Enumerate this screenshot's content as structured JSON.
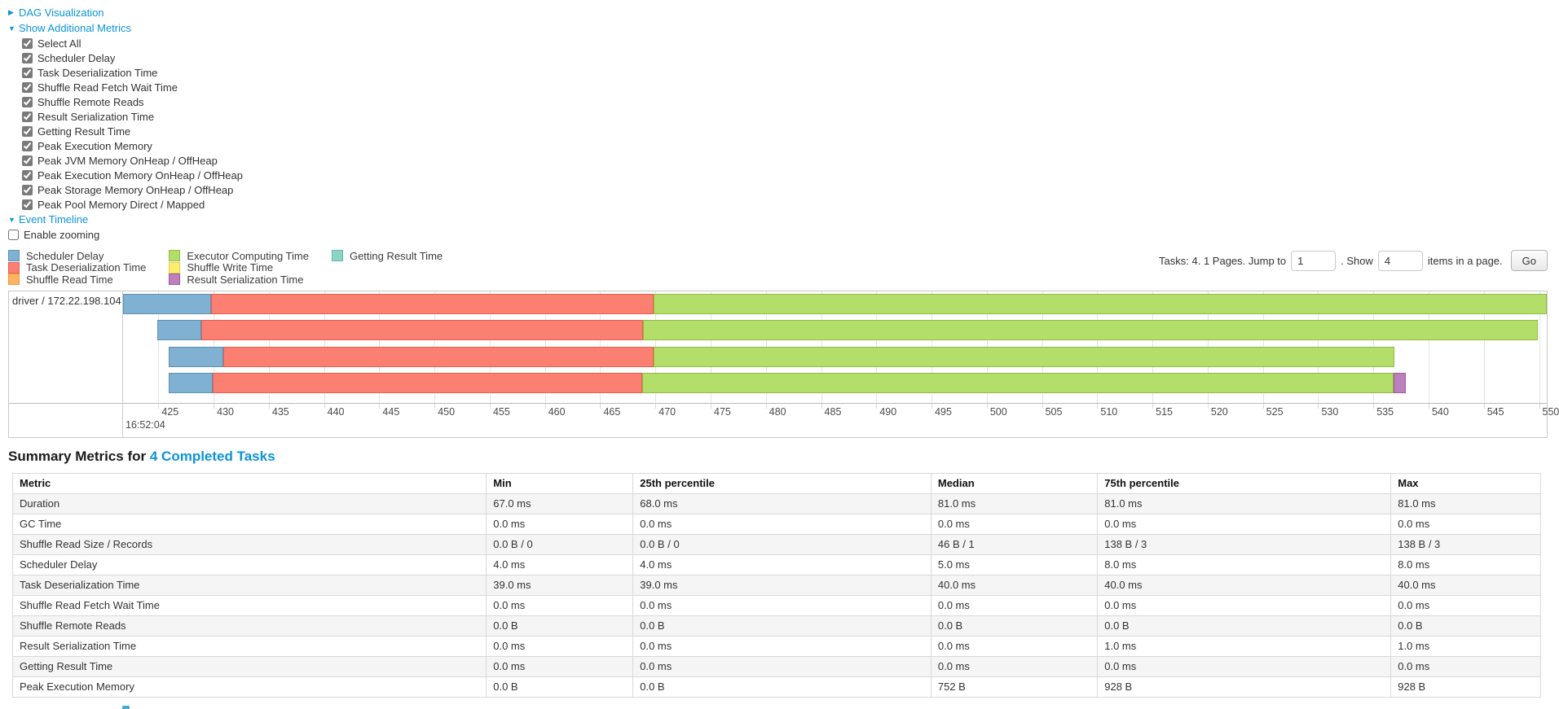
{
  "controls": {
    "dag_link": "DAG Visualization",
    "metrics_link": "Show Additional Metrics",
    "timeline_link": "Event Timeline",
    "enable_zooming": "Enable zooming",
    "metric_checkboxes": [
      "Select All",
      "Scheduler Delay",
      "Task Deserialization Time",
      "Shuffle Read Fetch Wait Time",
      "Shuffle Remote Reads",
      "Result Serialization Time",
      "Getting Result Time",
      "Peak Execution Memory",
      "Peak JVM Memory OnHeap / OffHeap",
      "Peak Execution Memory OnHeap / OffHeap",
      "Peak Storage Memory OnHeap / OffHeap",
      "Peak Pool Memory Direct / Mapped"
    ]
  },
  "pagination": {
    "prefix": "Tasks: 4. 1 Pages. Jump to",
    "jump_value": "1",
    "mid": ". Show",
    "show_value": "4",
    "suffix": "items in a page.",
    "go_label": "Go"
  },
  "chart_data": {
    "type": "timeline",
    "title": "Event Timeline",
    "row_label": "driver / 172.22.198.104",
    "axis": {
      "unit": "milliseconds within second 16:52:04",
      "min": 421.8,
      "max": 550.7,
      "tick_step": 5,
      "ticks": [
        425,
        430,
        435,
        440,
        445,
        450,
        455,
        460,
        465,
        470,
        475,
        480,
        485,
        490,
        495,
        500,
        505,
        510,
        515,
        520,
        525,
        530,
        535,
        540,
        545,
        550
      ],
      "major_label": "16:52:04"
    },
    "legend": [
      {
        "label": "Scheduler Delay",
        "color": "#80B1D3",
        "border": "#5A92B4"
      },
      {
        "label": "Task Deserialization Time",
        "color": "#FB8072",
        "border": "#E85F50"
      },
      {
        "label": "Shuffle Read Time",
        "color": "#FDB462",
        "border": "#EE9A3A"
      },
      {
        "label": "Executor Computing Time",
        "color": "#B3DE69",
        "border": "#8FBE3F"
      },
      {
        "label": "Shuffle Write Time",
        "color": "#FFED6F",
        "border": "#E0CE4A"
      },
      {
        "label": "Result Serialization Time",
        "color": "#BC80BD",
        "border": "#9D5BA0"
      },
      {
        "label": "Getting Result Time",
        "color": "#8DD3C7",
        "border": "#5FB9AA"
      }
    ],
    "tasks": [
      {
        "segments": [
          {
            "label": "Scheduler Delay",
            "start": 421.8,
            "end": 429.8
          },
          {
            "label": "Task Deserialization Time",
            "start": 429.8,
            "end": 469.8
          },
          {
            "label": "Executor Computing Time",
            "start": 469.8,
            "end": 550.7
          }
        ]
      },
      {
        "segments": [
          {
            "label": "Scheduler Delay",
            "start": 424.9,
            "end": 428.9
          },
          {
            "label": "Task Deserialization Time",
            "start": 428.9,
            "end": 468.9
          },
          {
            "label": "Executor Computing Time",
            "start": 468.9,
            "end": 549.9
          }
        ]
      },
      {
        "segments": [
          {
            "label": "Scheduler Delay",
            "start": 425.9,
            "end": 430.9
          },
          {
            "label": "Task Deserialization Time",
            "start": 430.9,
            "end": 469.8
          },
          {
            "label": "Executor Computing Time",
            "start": 469.8,
            "end": 536.9
          }
        ]
      },
      {
        "segments": [
          {
            "label": "Scheduler Delay",
            "start": 425.9,
            "end": 429.9
          },
          {
            "label": "Task Deserialization Time",
            "start": 429.9,
            "end": 468.8
          },
          {
            "label": "Executor Computing Time",
            "start": 468.8,
            "end": 536.8
          },
          {
            "label": "Result Serialization Time",
            "start": 536.8,
            "end": 537.9
          }
        ]
      }
    ]
  },
  "summary": {
    "title_prefix": "Summary Metrics for",
    "title_link": "4 Completed Tasks",
    "table": {
      "headers": [
        "Metric",
        "Min",
        "25th percentile",
        "Median",
        "75th percentile",
        "Max"
      ],
      "rows": [
        [
          "Duration",
          "67.0 ms",
          "68.0 ms",
          "81.0 ms",
          "81.0 ms",
          "81.0 ms"
        ],
        [
          "GC Time",
          "0.0 ms",
          "0.0 ms",
          "0.0 ms",
          "0.0 ms",
          "0.0 ms"
        ],
        [
          "Shuffle Read Size / Records",
          "0.0 B / 0",
          "0.0 B / 0",
          "46 B / 1",
          "138 B / 3",
          "138 B / 3"
        ],
        [
          "Scheduler Delay",
          "4.0 ms",
          "4.0 ms",
          "5.0 ms",
          "8.0 ms",
          "8.0 ms"
        ],
        [
          "Task Deserialization Time",
          "39.0 ms",
          "39.0 ms",
          "40.0 ms",
          "40.0 ms",
          "40.0 ms"
        ],
        [
          "Shuffle Read Fetch Wait Time",
          "0.0 ms",
          "0.0 ms",
          "0.0 ms",
          "0.0 ms",
          "0.0 ms"
        ],
        [
          "Shuffle Remote Reads",
          "0.0 B",
          "0.0 B",
          "0.0 B",
          "0.0 B",
          "0.0 B"
        ],
        [
          "Result Serialization Time",
          "0.0 ms",
          "0.0 ms",
          "0.0 ms",
          "1.0 ms",
          "1.0 ms"
        ],
        [
          "Getting Result Time",
          "0.0 ms",
          "0.0 ms",
          "0.0 ms",
          "0.0 ms",
          "0.0 ms"
        ],
        [
          "Peak Execution Memory",
          "0.0 B",
          "0.0 B",
          "752 B",
          "928 B",
          "928 B"
        ]
      ]
    }
  },
  "colors": {
    "link": "#0c93d8",
    "grid": "#e3e3e3",
    "chart_border": "#c8c8c8"
  }
}
